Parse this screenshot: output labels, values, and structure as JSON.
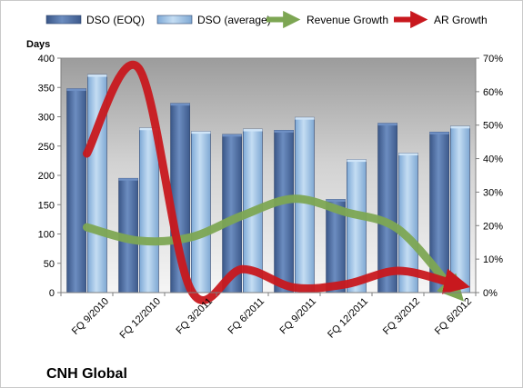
{
  "chart_data": {
    "type": "bar",
    "title": "",
    "company_label": "CNH Global",
    "categories": [
      "FQ 9/2010",
      "FQ 12/2010",
      "FQ 3/2011",
      "FQ 6/2011",
      "FQ 9/2011",
      "FQ 12/2011",
      "FQ 3/2012",
      "FQ 6/2012"
    ],
    "y_left": {
      "label": "Days",
      "min": 0,
      "max": 400,
      "ticks": [
        "0",
        "50",
        "100",
        "150",
        "200",
        "250",
        "300",
        "350",
        "400"
      ]
    },
    "y_right": {
      "label": "",
      "min": 0,
      "max": 0.7,
      "ticks": [
        "0%",
        "10%",
        "20%",
        "30%",
        "40%",
        "50%",
        "60%",
        "70%"
      ]
    },
    "series": [
      {
        "name": "DSO (EOQ)",
        "type": "bar",
        "axis": "left",
        "color": "#4f6fa3",
        "values": [
          348,
          195,
          323,
          270,
          277,
          159,
          289,
          274
        ]
      },
      {
        "name": "DSO (average)",
        "type": "bar",
        "axis": "left",
        "color": "#9dc3e8",
        "values": [
          372,
          281,
          275,
          279,
          299,
          227,
          238,
          284
        ]
      },
      {
        "name": "Revenue Growth",
        "type": "line",
        "axis": "right",
        "color": "#7da653",
        "values": [
          0.195,
          0.155,
          0.165,
          0.23,
          0.28,
          0.24,
          0.19,
          0.02
        ]
      },
      {
        "name": "AR Growth",
        "type": "line",
        "axis": "right",
        "color": "#c8181e",
        "values": [
          0.415,
          0.67,
          0.01,
          0.07,
          0.015,
          0.025,
          0.065,
          0.03
        ]
      }
    ],
    "grid": false,
    "legend_position": "top"
  }
}
